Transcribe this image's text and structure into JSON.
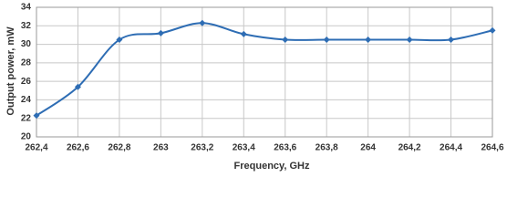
{
  "chart_data": {
    "type": "line",
    "x_label": "Frequency, GHz",
    "y_label": "Output power, mW",
    "x": [
      262.4,
      262.6,
      262.8,
      263.0,
      263.2,
      263.4,
      263.6,
      263.8,
      264.0,
      264.2,
      264.4,
      264.6
    ],
    "series": [
      {
        "color": "#2e6db4",
        "values": [
          22.3,
          25.4,
          30.5,
          31.2,
          32.3,
          31.1,
          30.5,
          30.5,
          30.5,
          30.5,
          30.5,
          31.5
        ]
      }
    ],
    "xlim": [
      262.4,
      264.6
    ],
    "xticks": [
      {
        "value": 262.4,
        "label": "262,4"
      },
      {
        "value": 262.6,
        "label": "262,6"
      },
      {
        "value": 262.8,
        "label": "262,8"
      },
      263,
      {
        "value": 263.2,
        "label": "263,2"
      },
      {
        "value": 263.4,
        "label": "263,4"
      },
      {
        "value": 263.6,
        "label": "263,6"
      },
      {
        "value": 263.8,
        "label": "263,8"
      },
      264,
      {
        "value": 264.2,
        "label": "264,2"
      },
      {
        "value": 264.4,
        "label": "264,4"
      },
      {
        "value": 264.6,
        "label": "264,6"
      }
    ],
    "ylim": [
      20,
      34
    ],
    "yticks": [
      20,
      22,
      24,
      26,
      28,
      30,
      32,
      34
    ],
    "grid": true
  }
}
